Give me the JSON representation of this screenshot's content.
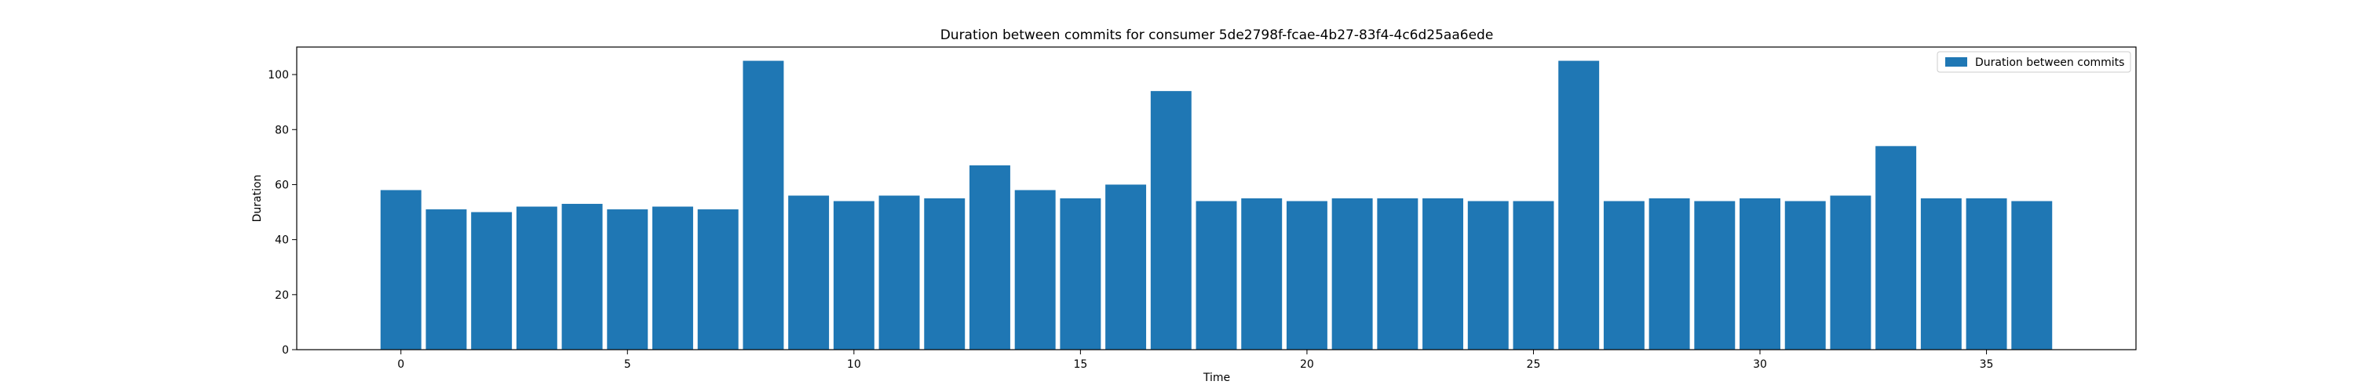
{
  "chart_data": {
    "type": "bar",
    "title": "Duration between commits for consumer 5de2798f-fcae-4b27-83f4-4c6d25aa6ede",
    "xlabel": "Time",
    "ylabel": "Duration",
    "x": [
      0,
      1,
      2,
      3,
      4,
      5,
      6,
      7,
      8,
      9,
      10,
      11,
      12,
      13,
      14,
      15,
      16,
      17,
      18,
      19,
      20,
      21,
      22,
      23,
      24,
      25,
      26,
      27,
      28,
      29,
      30,
      31,
      32,
      33,
      34,
      35,
      36
    ],
    "series": [
      {
        "name": "Duration between commits",
        "color": "#1f77b4",
        "values": [
          58,
          51,
          50,
          52,
          53,
          51,
          52,
          51,
          105,
          56,
          54,
          56,
          55,
          67,
          58,
          55,
          60,
          94,
          54,
          55,
          54,
          55,
          55,
          55,
          54,
          54,
          105,
          54,
          55,
          54,
          55,
          54,
          56,
          74,
          55,
          55,
          54
        ]
      }
    ],
    "xlim": [
      -2.3,
      38.3
    ],
    "ylim": [
      0,
      110
    ],
    "xticks": [
      0,
      5,
      10,
      15,
      20,
      25,
      30,
      35
    ],
    "yticks": [
      0,
      20,
      40,
      60,
      80,
      100
    ],
    "grid": false,
    "legend_position": "top-right"
  }
}
